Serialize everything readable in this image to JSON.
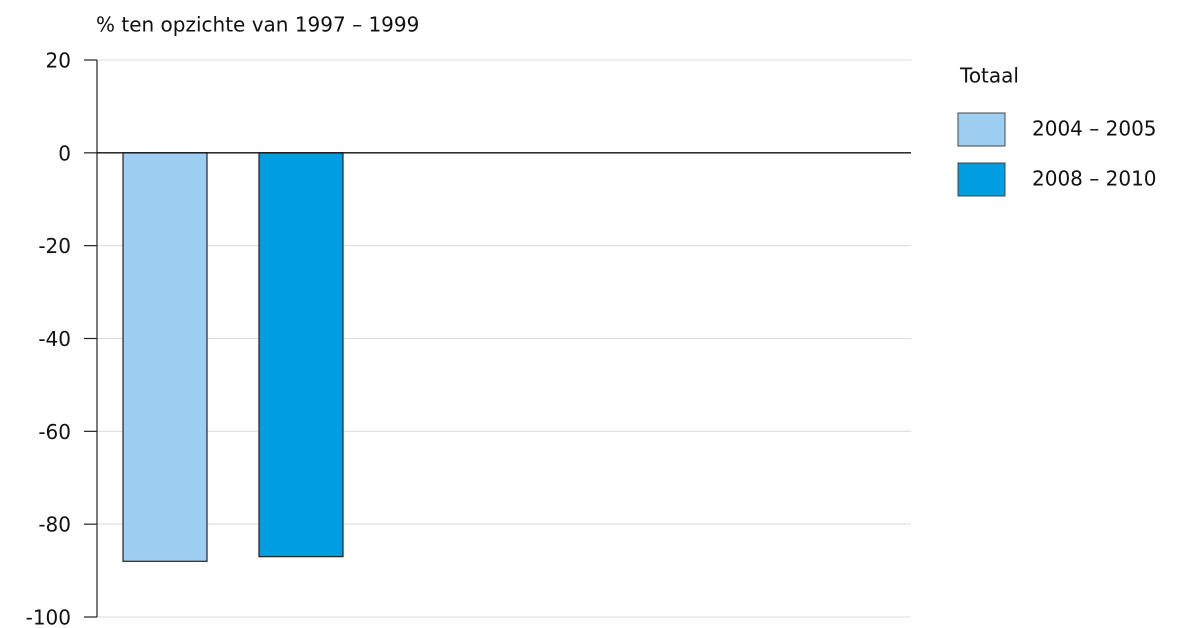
{
  "chart_data": {
    "type": "bar",
    "y_label": "% ten opzichte van 1997 – 1999",
    "categories": [
      null
    ],
    "series": [
      {
        "name": "2004 – 2005",
        "color": "#9ecff3",
        "values": [
          -88
        ]
      },
      {
        "name": "2008 – 2010",
        "color": "#009ee0",
        "values": [
          -87
        ]
      }
    ],
    "legend_title": "Totaal",
    "legend": "right",
    "ylim": [
      -100,
      20
    ],
    "yticks": [
      20,
      0,
      -20,
      -40,
      -60,
      -80,
      -100
    ],
    "grid": true
  }
}
